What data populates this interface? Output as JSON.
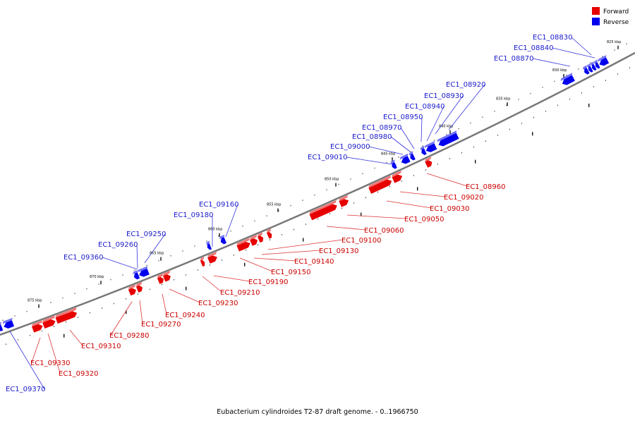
{
  "legend": [
    {
      "label": "Forward",
      "color": "#e60000"
    },
    {
      "label": "Reverse",
      "color": "#0000ee"
    }
  ],
  "caption": "Eubacterium cylindroides T2-87 draft genome. - 0..1966750",
  "colors": {
    "forward": "#e60000",
    "reverse": "#0000ee",
    "forward_text": "#cc0000",
    "reverse_text": "#1a1acc",
    "backbone": "#777777"
  },
  "kbp_markers": [
    "825 kbp",
    "830 kbp",
    "835 kbp",
    "840 kbp",
    "845 kbp",
    "850 kbp",
    "855 kbp",
    "860 kbp",
    "865 kbp",
    "870 kbp",
    "875 kbp"
  ],
  "genes_forward": [
    "EC1_08960",
    "EC1_09020",
    "EC1_09030",
    "EC1_09050",
    "EC1_09060",
    "EC1_09100",
    "EC1_09130",
    "EC1_09140",
    "EC1_09150",
    "EC1_09190",
    "EC1_09210",
    "EC1_09230",
    "EC1_09240",
    "EC1_09270",
    "EC1_09280",
    "EC1_09310",
    "EC1_09320",
    "EC1_09330"
  ],
  "genes_reverse": [
    "EC1_08830",
    "EC1_08840",
    "EC1_08870",
    "EC1_08920",
    "EC1_08930",
    "EC1_08940",
    "EC1_08950",
    "EC1_08970",
    "EC1_08980",
    "EC1_09000",
    "EC1_09010",
    "EC1_09160",
    "EC1_09180",
    "EC1_09250",
    "EC1_09260",
    "EC1_09360",
    "EC1_09370"
  ]
}
